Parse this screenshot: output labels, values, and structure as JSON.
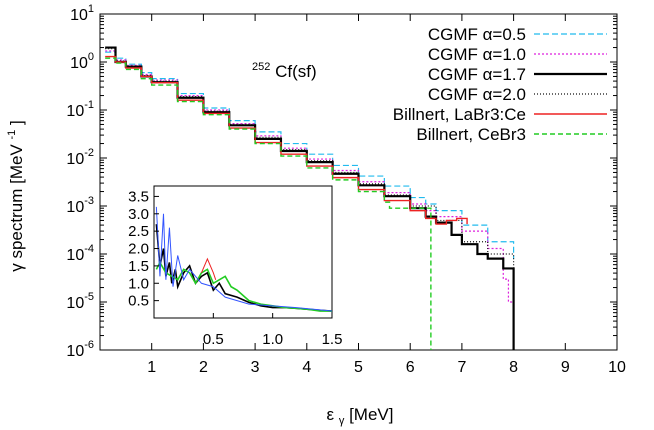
{
  "chart_data": {
    "type": "line",
    "title": "",
    "annotation": "252Cf(sf)",
    "annotation_parts": {
      "mass": "252",
      "element": "Cf(sf)"
    },
    "xlabel": {
      "base": "ε",
      "sub": "γ",
      "rest": " [MeV]"
    },
    "ylabel": {
      "base": "γ spectrum [MeV",
      "sup": "-1",
      "rest": "]"
    },
    "xlim": [
      0,
      10
    ],
    "ylim_log10": [
      -6,
      1
    ],
    "x_ticks": [
      1,
      2,
      3,
      4,
      5,
      6,
      7,
      8,
      9,
      10
    ],
    "y_ticks": [
      {
        "mant": "10",
        "exp": "1",
        "log": 1
      },
      {
        "mant": "10",
        "exp": "0",
        "log": 0
      },
      {
        "mant": "10",
        "exp": "-1",
        "log": -1
      },
      {
        "mant": "10",
        "exp": "-2",
        "log": -2
      },
      {
        "mant": "10",
        "exp": "-3",
        "log": -3
      },
      {
        "mant": "10",
        "exp": "-4",
        "log": -4
      },
      {
        "mant": "10",
        "exp": "-5",
        "log": -5
      },
      {
        "mant": "10",
        "exp": "-6",
        "log": -6
      }
    ],
    "legend_position": "top-right",
    "series": [
      {
        "name": "CGMF α=0.5",
        "color": "#22bbee",
        "dash": "6,3",
        "width": 1.2,
        "x": [
          0.1,
          0.3,
          0.5,
          0.8,
          1.0,
          1.5,
          2.0,
          2.5,
          3.0,
          3.5,
          4.0,
          4.5,
          5.0,
          5.5,
          6.0,
          6.3,
          6.5,
          7.0,
          7.5,
          8.0
        ],
        "y": [
          1.6,
          1.2,
          0.9,
          0.6,
          0.45,
          0.22,
          0.11,
          0.06,
          0.035,
          0.02,
          0.012,
          0.007,
          0.0042,
          0.0026,
          0.0015,
          0.0011,
          0.0008,
          0.0004,
          0.00018,
          8e-05
        ]
      },
      {
        "name": "CGMF α=1.0",
        "color": "#dd22dd",
        "dash": "2,2",
        "width": 1.2,
        "x": [
          0.1,
          0.3,
          0.5,
          0.8,
          1.0,
          1.5,
          2.0,
          2.5,
          3.0,
          3.5,
          4.0,
          4.5,
          5.0,
          5.5,
          6.0,
          6.3,
          6.5,
          7.0,
          7.5,
          7.8,
          7.9,
          8.0
        ],
        "y": [
          1.7,
          1.1,
          0.85,
          0.55,
          0.42,
          0.2,
          0.1,
          0.052,
          0.029,
          0.016,
          0.0095,
          0.0055,
          0.0032,
          0.0019,
          0.0011,
          0.0008,
          0.0006,
          0.0003,
          0.00013,
          3e-05,
          1e-05,
          1e-05
        ]
      },
      {
        "name": "CGMF α=1.7",
        "color": "#000000",
        "dash": "",
        "width": 2.2,
        "x": [
          0.1,
          0.3,
          0.5,
          0.8,
          1.0,
          1.5,
          2.0,
          2.5,
          3.0,
          3.5,
          4.0,
          4.5,
          5.0,
          5.5,
          6.0,
          6.3,
          6.5,
          6.8,
          7.0,
          7.3,
          7.5,
          7.8,
          8.0,
          8.0
        ],
        "y": [
          2.0,
          1.0,
          0.8,
          0.5,
          0.38,
          0.18,
          0.09,
          0.048,
          0.025,
          0.014,
          0.0082,
          0.0047,
          0.0027,
          0.0016,
          0.0009,
          0.0006,
          0.00045,
          0.00025,
          0.00016,
          0.0001,
          8e-05,
          5e-05,
          4e-05,
          1e-06
        ]
      },
      {
        "name": "CGMF α=2.0",
        "color": "#111111",
        "dash": "1,2",
        "width": 1.2,
        "x": [
          0.1,
          0.3,
          0.5,
          0.8,
          1.0,
          1.5,
          2.0,
          2.5,
          3.0,
          3.5,
          4.0,
          4.5,
          5.0,
          5.5,
          6.0,
          6.5,
          7.0,
          7.5,
          8.0
        ],
        "y": [
          1.9,
          1.05,
          0.82,
          0.52,
          0.4,
          0.19,
          0.095,
          0.05,
          0.027,
          0.015,
          0.0088,
          0.005,
          0.0029,
          0.0017,
          0.001,
          0.0005,
          0.00018,
          0.0001,
          5e-05
        ]
      },
      {
        "name": "Billnert, LaBr3:Ce",
        "color": "#ee2222",
        "dash": "",
        "width": 1.4,
        "x": [
          0.1,
          0.3,
          0.5,
          0.8,
          1.0,
          1.5,
          2.0,
          2.5,
          3.0,
          3.5,
          4.0,
          4.5,
          5.0,
          5.5,
          6.0,
          6.3,
          6.5,
          6.7,
          6.9,
          7.1
        ],
        "y": [
          1.3,
          1.0,
          0.75,
          0.5,
          0.37,
          0.16,
          0.085,
          0.042,
          0.021,
          0.012,
          0.0068,
          0.0039,
          0.0022,
          0.0013,
          0.0008,
          0.00055,
          0.00042,
          0.0005,
          0.00055,
          0.00042
        ]
      },
      {
        "name": "Billnert, CeBr3",
        "color": "#22cc22",
        "dash": "5,3",
        "width": 1.4,
        "x": [
          0.1,
          0.3,
          0.5,
          0.8,
          1.0,
          1.5,
          2.0,
          2.5,
          3.0,
          3.5,
          4.0,
          4.5,
          5.0,
          5.5,
          5.6,
          6.0,
          6.4,
          6.4
        ],
        "y": [
          1.2,
          0.95,
          0.7,
          0.45,
          0.33,
          0.15,
          0.08,
          0.04,
          0.02,
          0.011,
          0.0062,
          0.0035,
          0.002,
          0.0012,
          0.0009,
          0.0009,
          0.0009,
          1e-06
        ]
      }
    ],
    "inset": {
      "type": "line",
      "xlim": [
        0,
        1.5
      ],
      "ylim": [
        0,
        3.8
      ],
      "x_ticks": [
        {
          "v": 0.5,
          "label": "0.5"
        },
        {
          "v": 1.0,
          "label": "1.0"
        },
        {
          "v": 1.5,
          "label": "1.5"
        }
      ],
      "y_ticks": [
        {
          "v": 0.5,
          "label": "0.5"
        },
        {
          "v": 1.0,
          "label": "1.0"
        },
        {
          "v": 1.5,
          "label": "1.5"
        },
        {
          "v": 2.0,
          "label": "2.0"
        },
        {
          "v": 2.5,
          "label": "2.5"
        },
        {
          "v": 3.0,
          "label": "3.0"
        },
        {
          "v": 3.5,
          "label": "3.5"
        }
      ],
      "series": [
        {
          "name": "CGMF α=1.7",
          "color": "#000000",
          "width": 1.6,
          "x": [
            0.02,
            0.05,
            0.08,
            0.1,
            0.13,
            0.15,
            0.18,
            0.2,
            0.25,
            0.3,
            0.35,
            0.4,
            0.45,
            0.5,
            0.55,
            0.6,
            0.7,
            0.8,
            0.9,
            1.0,
            1.1,
            1.2,
            1.3,
            1.4,
            1.5
          ],
          "y": [
            2.7,
            1.5,
            2.0,
            1.2,
            1.6,
            1.0,
            1.4,
            0.9,
            1.3,
            1.5,
            1.0,
            1.2,
            1.3,
            0.8,
            1.0,
            0.7,
            0.6,
            0.45,
            0.35,
            0.3,
            0.3,
            0.28,
            0.25,
            0.22,
            0.2
          ]
        },
        {
          "name": "Billnert, CeBr3",
          "color": "#22cc22",
          "width": 1.6,
          "x": [
            0.02,
            0.05,
            0.1,
            0.15,
            0.2,
            0.25,
            0.3,
            0.35,
            0.4,
            0.45,
            0.5,
            0.55,
            0.6,
            0.65,
            0.7,
            0.8,
            0.9,
            1.0,
            1.1,
            1.2,
            1.3,
            1.4,
            1.5
          ],
          "y": [
            1.4,
            1.6,
            1.3,
            1.2,
            1.1,
            1.4,
            1.3,
            1.0,
            1.3,
            1.4,
            1.0,
            1.1,
            1.2,
            0.9,
            0.8,
            0.5,
            0.4,
            0.35,
            0.3,
            0.28,
            0.25,
            0.2,
            0.2
          ]
        },
        {
          "name": "CGMF α=0.5",
          "color": "#3355ff",
          "width": 1.0,
          "x": [
            0.02,
            0.05,
            0.08,
            0.1,
            0.13,
            0.16,
            0.2,
            0.25,
            0.3,
            0.4,
            0.5,
            0.6,
            0.8,
            1.0,
            1.2,
            1.5
          ],
          "y": [
            3.2,
            1.2,
            3.0,
            1.1,
            2.6,
            0.9,
            1.8,
            1.1,
            1.4,
            1.0,
            0.9,
            0.6,
            0.4,
            0.35,
            0.3,
            0.2
          ]
        },
        {
          "name": "Billnert, LaBr3:Ce",
          "color": "#ee2222",
          "width": 1.0,
          "x": [
            0.4,
            0.45,
            0.5,
            0.52
          ],
          "y": [
            1.3,
            1.7,
            1.3,
            1.1
          ]
        }
      ]
    }
  }
}
